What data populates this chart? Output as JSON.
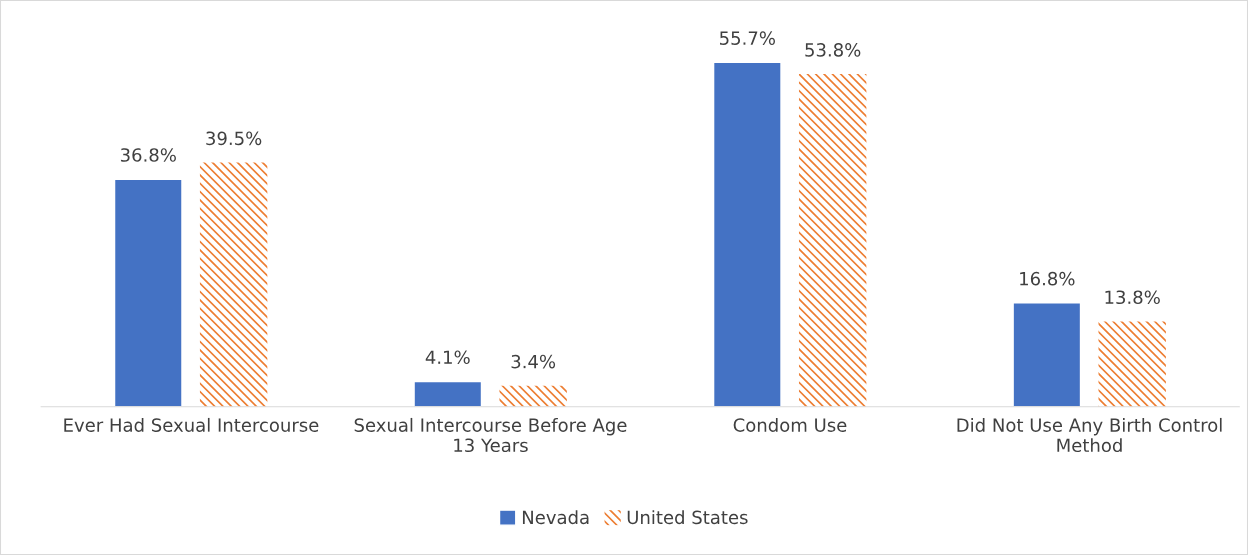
{
  "chart_data": {
    "type": "bar",
    "categories": [
      "Ever Had Sexual Intercourse",
      "Sexual Intercourse Before Age\n13 Years",
      "Condom Use",
      "Did Not Use Any Birth Control\nMethod"
    ],
    "series": [
      {
        "name": "Nevada",
        "color": "#4472c4",
        "values": [
          36.8,
          4.1,
          55.7,
          16.8
        ],
        "value_labels": [
          "36.8%",
          "4.1%",
          "55.7%",
          "16.8%"
        ]
      },
      {
        "name": "United States",
        "color": "#ed7d31",
        "values": [
          39.5,
          3.4,
          53.8,
          13.8
        ],
        "value_labels": [
          "39.5%",
          "3.4%",
          "53.8%",
          "13.8%"
        ]
      }
    ],
    "legend": "bottom",
    "grid": false
  }
}
